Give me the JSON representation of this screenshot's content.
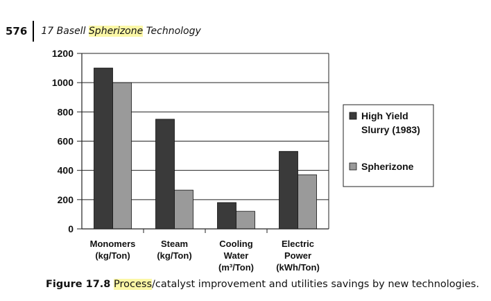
{
  "header": {
    "page_number": "576",
    "chapter_number": "17",
    "title_before": "Basell",
    "title_highlight": "Spherizone",
    "title_after": "Technology"
  },
  "caption": {
    "label": "Figure 17.8",
    "highlight": "Process",
    "text": "/catalyst improvement and utilities savings by new technologies."
  },
  "colors": {
    "series_dark": "#3a3a3a",
    "series_light": "#9a9a9a",
    "highlight": "#fbf7a6"
  },
  "chart_data": {
    "type": "bar",
    "categories": [
      [
        "Monomers",
        "(kg/Ton)"
      ],
      [
        "Steam",
        "(kg/Ton)"
      ],
      [
        "Cooling",
        "Water",
        "(m³/Ton)"
      ],
      [
        "Electric",
        "Power",
        "(kWh/Ton)"
      ]
    ],
    "series": [
      {
        "name": [
          "High Yield",
          "Slurry (1983)"
        ],
        "values": [
          1100,
          750,
          180,
          530
        ]
      },
      {
        "name": [
          "Spherizone"
        ],
        "values": [
          1000,
          265,
          120,
          370
        ]
      }
    ],
    "ylim": [
      0,
      1200
    ],
    "yticks": [
      0,
      200,
      400,
      600,
      800,
      1000,
      1200
    ],
    "grid": true,
    "legend": "right"
  }
}
